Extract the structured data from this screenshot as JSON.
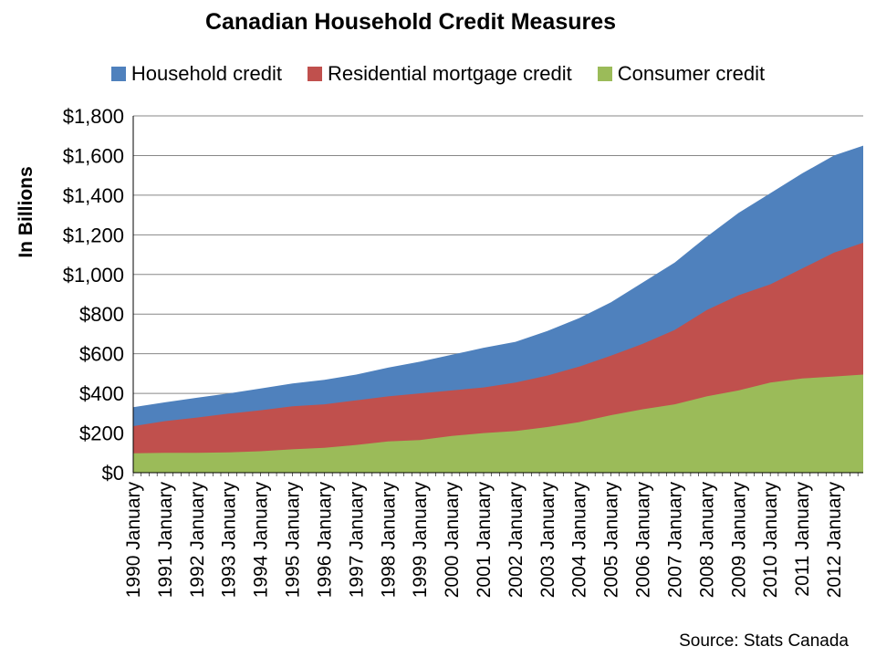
{
  "chart_data": {
    "type": "area",
    "title": "Canadian Household Credit Measures",
    "ylabel": "In Billions",
    "xlabel": "",
    "source": "Source: Stats Canada",
    "ylim": [
      0,
      1800
    ],
    "y_ticks": [
      "$0",
      "$200",
      "$400",
      "$600",
      "$800",
      "$1,000",
      "$1,200",
      "$1,400",
      "$1,600",
      "$1,800"
    ],
    "x_start": 1990,
    "x_end": 2012.917,
    "categories": [
      "1990 January",
      "1991 January",
      "1992 January",
      "1993 January",
      "1994 January",
      "1995 January",
      "1996 January",
      "1997 January",
      "1998 January",
      "1999 January",
      "2000 January",
      "2001 January",
      "2002 January",
      "2003 January",
      "2004 January",
      "2005 January",
      "2006 January",
      "2007 January",
      "2008 January",
      "2009 January",
      "2010 January",
      "2011 January",
      "2012 January"
    ],
    "x": [
      1990,
      1991,
      1992,
      1993,
      1994,
      1995,
      1996,
      1997,
      1998,
      1999,
      2000,
      2001,
      2002,
      2003,
      2004,
      2005,
      2006,
      2007,
      2008,
      2009,
      2010,
      2011,
      2012,
      2012.917
    ],
    "series": [
      {
        "name": "Household credit",
        "color": "#4f81bd",
        "values": [
          330,
          355,
          378,
          400,
          425,
          450,
          468,
          495,
          530,
          560,
          595,
          630,
          660,
          715,
          780,
          860,
          960,
          1060,
          1190,
          1310,
          1410,
          1510,
          1600,
          1650
        ]
      },
      {
        "name": "Residential mortgage credit",
        "color": "#c0504d",
        "values": [
          235,
          260,
          278,
          298,
          315,
          335,
          345,
          365,
          385,
          400,
          415,
          430,
          455,
          490,
          535,
          590,
          650,
          720,
          820,
          895,
          950,
          1030,
          1110,
          1160
        ]
      },
      {
        "name": "Consumer credit",
        "color": "#9bbb59",
        "values": [
          98,
          100,
          100,
          102,
          108,
          118,
          125,
          140,
          158,
          165,
          185,
          200,
          210,
          230,
          255,
          290,
          320,
          345,
          385,
          415,
          455,
          475,
          485,
          495
        ]
      }
    ],
    "grid": true,
    "legend_position": "top"
  }
}
